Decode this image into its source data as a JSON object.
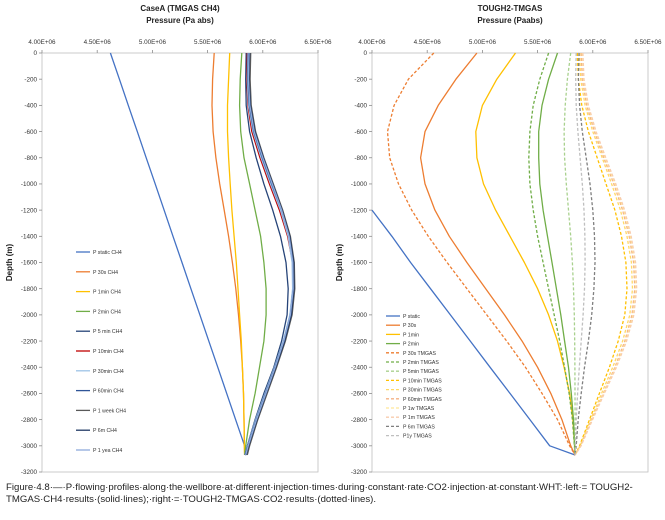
{
  "caption": "Figure·4.8·—·P·flowing·profiles·along·the·wellbore·at·different·injection·times·during·constant·rate·CO2·injection·at·constant·WHT:·left·= TOUGH2-TMGAS·CH4·results·(solid·lines);·right·=·TOUGH2-TMGAS·CO2·results·(dotted·lines).",
  "chart_data": [
    {
      "type": "line",
      "title": "CaseA (TMGAS CH4)",
      "xlabel": "Pressure (Pa abs)",
      "ylabel": "Depth (m)",
      "xlim": [
        4000000,
        6500000
      ],
      "ylim": [
        -3200,
        0
      ],
      "x_axis_position": "top",
      "grid": false,
      "legend_position": "left-middle",
      "xticks": [
        "4.00E+06",
        "4.50E+06",
        "5.00E+06",
        "5.50E+06",
        "6.00E+06",
        "6.50E+06"
      ],
      "yticks": [
        "0",
        "-200",
        "-400",
        "-600",
        "-800",
        "-1000",
        "-1200",
        "-1400",
        "-1600",
        "-1800",
        "-2000",
        "-2200",
        "-2400",
        "-2600",
        "-2800",
        "-3000",
        "-3200"
      ],
      "depths": [
        0,
        -200,
        -400,
        -600,
        -800,
        -1000,
        -1200,
        -1400,
        -1600,
        -1800,
        -2000,
        -2200,
        -2400,
        -2600,
        -2800,
        -3000,
        -3070
      ],
      "series": [
        {
          "name": "P static CH4",
          "color": "#4472c4",
          "dash": "",
          "x": [
            4620000,
            4701000,
            4782000,
            4863000,
            4944000,
            5025000,
            5106000,
            5187000,
            5268000,
            5349000,
            5430000,
            5511000,
            5592000,
            5673000,
            5754000,
            5835000,
            5860000
          ]
        },
        {
          "name": "P 30s CH4",
          "color": "#ed7d31",
          "dash": "",
          "x": [
            5560000,
            5545000,
            5540000,
            5550000,
            5575000,
            5610000,
            5650000,
            5690000,
            5725000,
            5755000,
            5780000,
            5800000,
            5815000,
            5825000,
            5830000,
            5833000,
            5835000
          ]
        },
        {
          "name": "P 1min CH4",
          "color": "#ffc000",
          "dash": "",
          "x": [
            5700000,
            5690000,
            5680000,
            5680000,
            5690000,
            5705000,
            5720000,
            5740000,
            5760000,
            5775000,
            5790000,
            5805000,
            5815000,
            5825000,
            5830000,
            5833000,
            5835000
          ]
        },
        {
          "name": "P 2min CH4",
          "color": "#70ad47",
          "dash": "",
          "x": [
            5810000,
            5795000,
            5790000,
            5800000,
            5830000,
            5880000,
            5930000,
            5980000,
            6010000,
            6030000,
            6030000,
            6010000,
            5970000,
            5930000,
            5880000,
            5845000,
            5835000
          ]
        },
        {
          "name": "P 5 min CH4",
          "color": "#264478",
          "dash": "",
          "x": [
            5850000,
            5845000,
            5850000,
            5880000,
            5940000,
            6010000,
            6090000,
            6160000,
            6210000,
            6230000,
            6220000,
            6170000,
            6100000,
            6010000,
            5930000,
            5860000,
            5840000
          ]
        },
        {
          "name": "P 10min CH4",
          "color": "#c00000",
          "dash": "",
          "x": [
            5860000,
            5855000,
            5865000,
            5900000,
            5975000,
            6060000,
            6150000,
            6225000,
            6270000,
            6280000,
            6255000,
            6195000,
            6115000,
            6025000,
            5940000,
            5865000,
            5840000
          ]
        },
        {
          "name": "P 30min CH4",
          "color": "#9dc3e6",
          "dash": "",
          "x": [
            5865000,
            5860000,
            5870000,
            5910000,
            5985000,
            6070000,
            6160000,
            6230000,
            6265000,
            6270000,
            6245000,
            6185000,
            6105000,
            6020000,
            5935000,
            5862000,
            5838000
          ]
        },
        {
          "name": "P 60min CH4",
          "color": "#2f5597",
          "dash": "",
          "x": [
            5870000,
            5865000,
            5878000,
            5918000,
            5995000,
            6080000,
            6170000,
            6240000,
            6275000,
            6275000,
            6250000,
            6190000,
            6110000,
            6025000,
            5940000,
            5865000,
            5840000
          ]
        },
        {
          "name": "P 1 week CH4",
          "color": "#595959",
          "dash": "",
          "x": [
            5890000,
            5885000,
            5895000,
            5935000,
            6010000,
            6095000,
            6180000,
            6250000,
            6285000,
            6290000,
            6265000,
            6205000,
            6125000,
            6040000,
            5955000,
            5880000,
            5860000
          ]
        },
        {
          "name": "P 6m CH4",
          "color": "#203864",
          "dash": "",
          "x": [
            5880000,
            5875000,
            5888000,
            5928000,
            6005000,
            6090000,
            6175000,
            6245000,
            6280000,
            6283000,
            6258000,
            6198000,
            6118000,
            6032000,
            5948000,
            5872000,
            5850000
          ]
        },
        {
          "name": "P 1 yea CH4",
          "color": "#8faadc",
          "dash": "",
          "x": [
            5875000,
            5870000,
            5882000,
            5922000,
            6000000,
            6085000,
            6170000,
            6238000,
            6272000,
            6275000,
            6250000,
            6190000,
            6112000,
            6028000,
            5943000,
            5868000,
            5845000
          ]
        }
      ]
    },
    {
      "type": "line",
      "title": "TOUGH2-TMGAS",
      "xlabel": "Pressure (Paabs)",
      "ylabel": "Depth (m)",
      "xlim": [
        4000000,
        6500000
      ],
      "ylim": [
        -3200,
        0
      ],
      "x_axis_position": "top",
      "grid": false,
      "legend_position": "left-bottom",
      "xticks": [
        "4.00E+06",
        "4.50E+06",
        "5.00E+06",
        "5.50E+06",
        "6.00E+06",
        "6.50E+06"
      ],
      "yticks": [
        "0",
        "-200",
        "-400",
        "-600",
        "-800",
        "-1000",
        "-1200",
        "-1400",
        "-1600",
        "-1800",
        "-2000",
        "-2200",
        "-2400",
        "-2600",
        "-2800",
        "-3000",
        "-3200"
      ],
      "depths": [
        0,
        -200,
        -400,
        -600,
        -800,
        -1000,
        -1200,
        -1400,
        -1600,
        -1800,
        -2000,
        -2200,
        -2400,
        -2600,
        -2800,
        -3000,
        -3070
      ],
      "series": [
        {
          "name": "P static",
          "color": "#4472c4",
          "dash": "",
          "x": [
            null,
            null,
            null,
            null,
            null,
            null,
            4000000,
            4180000,
            4350000,
            4530000,
            4710000,
            4890000,
            5070000,
            5250000,
            5430000,
            5610000,
            5840000
          ]
        },
        {
          "name": "P 30s",
          "color": "#ed7d31",
          "dash": "",
          "x": [
            4950000,
            4760000,
            4600000,
            4480000,
            4440000,
            4480000,
            4570000,
            4700000,
            4860000,
            5030000,
            5200000,
            5360000,
            5500000,
            5620000,
            5720000,
            5800000,
            5840000
          ]
        },
        {
          "name": "P 1min",
          "color": "#ffc000",
          "dash": "",
          "x": [
            5300000,
            5130000,
            5000000,
            4940000,
            4950000,
            5010000,
            5120000,
            5250000,
            5380000,
            5500000,
            5600000,
            5680000,
            5740000,
            5790000,
            5820000,
            5835000,
            5840000
          ]
        },
        {
          "name": "P 2min",
          "color": "#70ad47",
          "dash": "",
          "x": [
            5680000,
            5600000,
            5540000,
            5510000,
            5510000,
            5520000,
            5550000,
            5590000,
            5630000,
            5670000,
            5710000,
            5745000,
            5780000,
            5805000,
            5825000,
            5835000,
            5840000
          ]
        },
        {
          "name": "P 30s TMGAS",
          "color": "#ed7d31",
          "dash": "3,2",
          "x": [
            4560000,
            4330000,
            4200000,
            4140000,
            4160000,
            4240000,
            4360000,
            4510000,
            4680000,
            4860000,
            5040000,
            5220000,
            5390000,
            5540000,
            5680000,
            5790000,
            5840000
          ]
        },
        {
          "name": "P 2min TMGAS",
          "color": "#70ad47",
          "dash": "3,2",
          "x": [
            5600000,
            5520000,
            5460000,
            5430000,
            5420000,
            5430000,
            5460000,
            5500000,
            5550000,
            5600000,
            5650000,
            5700000,
            5745000,
            5785000,
            5815000,
            5833000,
            5840000
          ]
        },
        {
          "name": "P 5min TMGAS",
          "color": "#a9d18e",
          "dash": "3,2",
          "x": [
            5800000,
            5770000,
            5750000,
            5740000,
            5745000,
            5760000,
            5780000,
            5800000,
            5815000,
            5825000,
            5832000,
            5836000,
            5838000,
            5839000,
            5840000,
            5840000,
            5840000
          ]
        },
        {
          "name": "P 10min TMGAS",
          "color": "#ffc000",
          "dash": "3,2",
          "x": [
            5860000,
            5870000,
            5900000,
            5960000,
            6040000,
            6120000,
            6200000,
            6260000,
            6300000,
            6310000,
            6290000,
            6230000,
            6150000,
            6060000,
            5970000,
            5880000,
            5840000
          ]
        },
        {
          "name": "P 30min TMGAS",
          "color": "#ffd966",
          "dash": "3,2",
          "x": [
            5880000,
            5890000,
            5930000,
            6000000,
            6085000,
            6170000,
            6250000,
            6310000,
            6350000,
            6360000,
            6335000,
            6270000,
            6180000,
            6080000,
            5980000,
            5885000,
            5840000
          ]
        },
        {
          "name": "P 60min TMGAS",
          "color": "#f4b183",
          "dash": "3,2",
          "x": [
            5895000,
            5905000,
            5945000,
            6015000,
            6100000,
            6190000,
            6270000,
            6330000,
            6370000,
            6380000,
            6355000,
            6290000,
            6200000,
            6095000,
            5990000,
            5890000,
            5840000
          ]
        },
        {
          "name": "P 1w TMGAS",
          "color": "#ffe699",
          "dash": "3,2",
          "x": [
            5905000,
            5915000,
            5955000,
            6025000,
            6110000,
            6200000,
            6280000,
            6340000,
            6380000,
            6390000,
            6365000,
            6300000,
            6208000,
            6100000,
            5995000,
            5892000,
            5840000
          ]
        },
        {
          "name": "P 1m TMGAS",
          "color": "#f8cbad",
          "dash": "3,2",
          "x": [
            5910000,
            5920000,
            5960000,
            6030000,
            6118000,
            6208000,
            6288000,
            6348000,
            6388000,
            6398000,
            6372000,
            6306000,
            6214000,
            6105000,
            5998000,
            5894000,
            5840000
          ]
        },
        {
          "name": "P 6m TMGAS",
          "color": "#7f7f7f",
          "dash": "3,2",
          "x": [
            5875000,
            5870000,
            5880000,
            5905000,
            5940000,
            5975000,
            6000000,
            6015000,
            6020000,
            6010000,
            5990000,
            5960000,
            5925000,
            5895000,
            5868000,
            5850000,
            5840000
          ]
        },
        {
          "name": "P1y TMGAS",
          "color": "#bfbfbf",
          "dash": "3,2",
          "x": [
            5850000,
            5845000,
            5850000,
            5865000,
            5885000,
            5905000,
            5920000,
            5928000,
            5930000,
            5925000,
            5912000,
            5895000,
            5878000,
            5862000,
            5850000,
            5843000,
            5840000
          ]
        }
      ]
    }
  ]
}
